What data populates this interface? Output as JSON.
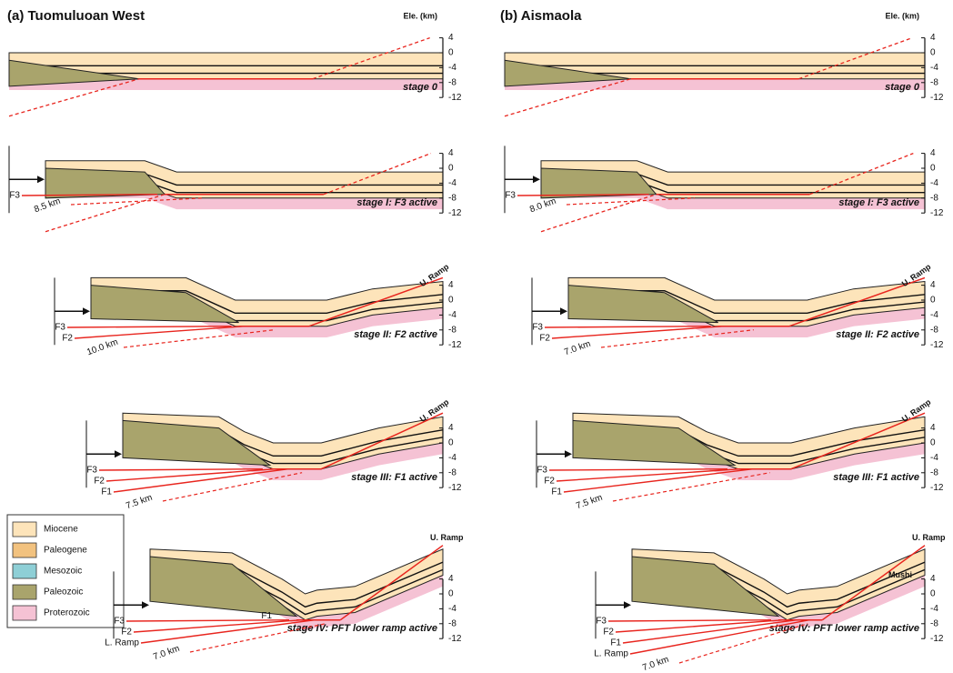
{
  "panels": [
    {
      "title": "(a) Tuomuluoan West",
      "axis_label": "Ele. (km)",
      "stages": [
        {
          "label": "stage 0"
        },
        {
          "label": "stage I: F3 active",
          "faults": [
            "F3"
          ],
          "shortening": "8.5 km"
        },
        {
          "label": "stage II: F2 active",
          "faults": [
            "F3",
            "F2"
          ],
          "shortening": "10.0 km",
          "ramp": "U. Ramp"
        },
        {
          "label": "stage III: F1 active",
          "faults": [
            "F3",
            "F2",
            "F1"
          ],
          "shortening": "7.5 km",
          "ramp": "U. Ramp"
        },
        {
          "label": "stage IV: PFT lower ramp active",
          "faults": [
            "F3",
            "F2",
            "L. Ramp"
          ],
          "shortening": "7.0 km",
          "ramp": "U. Ramp",
          "inner_label": "F1"
        }
      ]
    },
    {
      "title": "(b) Aismaola",
      "axis_label": "Ele. (km)",
      "stages": [
        {
          "label": "stage 0"
        },
        {
          "label": "stage I: F3 active",
          "faults": [
            "F3"
          ],
          "shortening": "8.0 km"
        },
        {
          "label": "stage II: F2 active",
          "faults": [
            "F3",
            "F2"
          ],
          "shortening": "7.0 km",
          "ramp": "U. Ramp"
        },
        {
          "label": "stage III: F1 active",
          "faults": [
            "F3",
            "F2",
            "F1"
          ],
          "shortening": "7.5 km",
          "ramp": "U. Ramp"
        },
        {
          "label": "stage IV: PFT lower ramp active",
          "faults": [
            "F3",
            "F2",
            "F1",
            "L. Ramp"
          ],
          "shortening": "7.0 km",
          "ramp": "U. Ramp",
          "inner_label": "Mushi"
        }
      ]
    }
  ],
  "elevation_ticks": [
    4,
    0,
    -4,
    -8,
    -12
  ],
  "legend": [
    "Miocene",
    "Paleogene",
    "Mesozoic",
    "Paleozoic",
    "Proterozoic"
  ]
}
